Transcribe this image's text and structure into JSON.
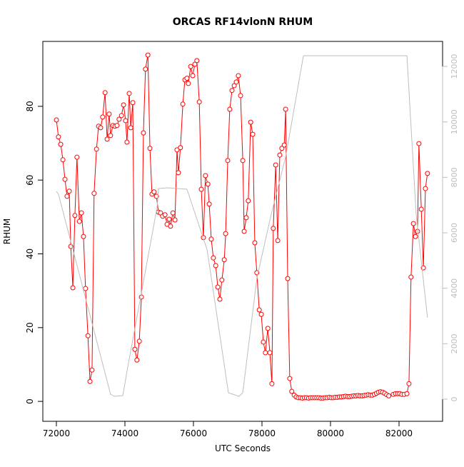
{
  "chart_data": {
    "type": "line",
    "title": "ORCAS RF14vlonN RHUM",
    "x_label": "UTC Seconds",
    "y_label": "RHUM",
    "xlim": [
      71604,
      83271
    ],
    "ylim": [
      -5.4,
      97.6
    ],
    "y2lim": [
      -798,
      12902
    ],
    "xticks": [
      72000,
      74000,
      76000,
      78000,
      80000,
      82000
    ],
    "yticks": [
      0,
      20,
      40,
      60,
      80
    ],
    "y2ticks": [
      0,
      2000,
      4000,
      6000,
      8000,
      10000,
      12000
    ],
    "series": [
      {
        "color": "#ff0000",
        "marker": "circle",
        "x": [
          72000,
          72060,
          72125,
          72190,
          72250,
          72310,
          72375,
          72420,
          72480,
          72540,
          72600,
          72670,
          72730,
          72790,
          72850,
          72920,
          72980,
          73040,
          73100,
          73170,
          73230,
          73290,
          73350,
          73420,
          73480,
          73540,
          73580,
          73650,
          73710,
          73770,
          73830,
          73900,
          73960,
          74020,
          74060,
          74125,
          74170,
          74230,
          74290,
          74350,
          74420,
          74480,
          74540,
          74600,
          74670,
          74730,
          74790,
          74850,
          74920,
          74980,
          75040,
          75100,
          75170,
          75230,
          75290,
          75330,
          75400,
          75460,
          75520,
          75560,
          75620,
          75690,
          75750,
          75810,
          75850,
          75920,
          75980,
          76040,
          76100,
          76170,
          76230,
          76290,
          76350,
          76420,
          76460,
          76520,
          76580,
          76650,
          76710,
          76770,
          76830,
          76900,
          76940,
          77000,
          77060,
          77125,
          77190,
          77250,
          77310,
          77375,
          77440,
          77480,
          77540,
          77600,
          77670,
          77730,
          77790,
          77850,
          77920,
          77980,
          78040,
          78100,
          78170,
          78230,
          78290,
          78330,
          78400,
          78460,
          78520,
          78580,
          78650,
          78690,
          78750,
          78810,
          78870,
          78940,
          79000,
          79060,
          79120,
          79180,
          79240,
          79300,
          79360,
          79420,
          79480,
          79540,
          79600,
          79660,
          79720,
          79780,
          79840,
          79900,
          79960,
          80020,
          80080,
          80140,
          80200,
          80260,
          80320,
          80380,
          80440,
          80500,
          80560,
          80620,
          80680,
          80740,
          80800,
          80860,
          80920,
          80980,
          81040,
          81100,
          81160,
          81220,
          81280,
          81340,
          81400,
          81460,
          81520,
          81580,
          81640,
          81700,
          81830,
          81900,
          81960,
          82020,
          82080,
          82150,
          82230,
          82290,
          82350,
          82420,
          82480,
          82540,
          82580,
          82650,
          82710,
          82770,
          82830
        ],
        "values": [
          76.3,
          71.7,
          69.7,
          65.5,
          60.2,
          55.6,
          57,
          42,
          30.8,
          50.4,
          66.2,
          48.8,
          51.1,
          44.7,
          30.6,
          17.8,
          5.4,
          8.5,
          56.4,
          68.4,
          74.6,
          74.2,
          77.1,
          83.7,
          71.1,
          77.9,
          72.1,
          74.8,
          74.6,
          74.8,
          76.5,
          77.5,
          80.4,
          76.1,
          70.3,
          83.5,
          74.2,
          81,
          14.1,
          11.2,
          16.3,
          28.3,
          72.8,
          90.1,
          93.9,
          68.6,
          56.2,
          56.8,
          55.6,
          51.3,
          51.1,
          50.2,
          50.6,
          48,
          49.4,
          47.5,
          51.1,
          49.2,
          68.2,
          62,
          68.8,
          80.6,
          87.2,
          87.6,
          86.2,
          90.8,
          88.3,
          91.4,
          92.4,
          81.2,
          57.5,
          44.4,
          61.2,
          58.9,
          53.5,
          44,
          38.9,
          36.8,
          31,
          27.7,
          32.9,
          38.4,
          45.5,
          65.3,
          79.2,
          84.3,
          85.6,
          86.6,
          88.3,
          82.9,
          65.3,
          46.1,
          49.8,
          54.4,
          75.7,
          72.4,
          43,
          34.9,
          24.8,
          23.6,
          16.1,
          13.2,
          19.8,
          13.2,
          4.8,
          46.9,
          64.1,
          43.6,
          66.8,
          68.6,
          69.5,
          79.2,
          33.3,
          6.2,
          2.7,
          1.7,
          1.2,
          1.0,
          1.0,
          0.9,
          1.0,
          1.0,
          0.9,
          1.0,
          1.0,
          1.0,
          1.0,
          1.0,
          0.9,
          0.9,
          1.0,
          1.0,
          1.1,
          1.0,
          1.0,
          1.1,
          1.1,
          1.2,
          1.2,
          1.3,
          1.4,
          1.3,
          1.3,
          1.4,
          1.5,
          1.5,
          1.6,
          1.5,
          1.5,
          1.6,
          1.7,
          1.8,
          1.7,
          1.7,
          1.9,
          2.2,
          2.5,
          2.6,
          2.5,
          2.2,
          1.8,
          1.5,
          1.9,
          2.1,
          2.1,
          2.1,
          1.9,
          1.9,
          2.1,
          4.8,
          33.7,
          48.2,
          44.7,
          46.1,
          69.9,
          52.1,
          36.2,
          57.7,
          61.8
        ]
      },
      {
        "color": "#bebebe",
        "axis": "y2",
        "x": [
          72000,
          72060,
          73580,
          73690,
          73940,
          74060,
          74520,
          74940,
          74980,
          75250,
          75810,
          76400,
          77020,
          77330,
          77440,
          77850,
          78270,
          78690,
          79210,
          82230,
          82500,
          82830
        ],
        "values": [
          7494,
          7391,
          180,
          103,
          129,
          1004,
          4095,
          6928,
          7597,
          7623,
          7571,
          5382,
          232,
          103,
          232,
          4352,
          6670,
          8730,
          12387,
          12387,
          6670,
          2936
        ]
      }
    ]
  }
}
